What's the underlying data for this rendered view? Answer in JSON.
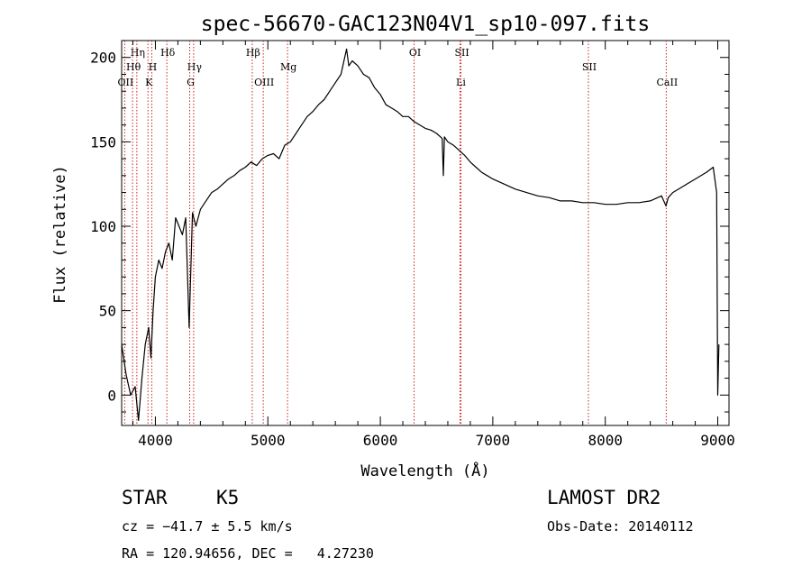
{
  "chart_data": {
    "type": "line",
    "title": "spec-56670-GAC123N04V1_sp10-097.fits",
    "xlabel": "Wavelength (Å)",
    "ylabel": "Flux (relative)",
    "xlim": [
      3700,
      9100
    ],
    "ylim": [
      -18,
      210
    ],
    "xticks": [
      4000,
      5000,
      6000,
      7000,
      8000,
      9000
    ],
    "yticks": [
      0,
      50,
      100,
      150,
      200
    ],
    "series": [
      {
        "name": "flux",
        "x": [
          3700,
          3740,
          3780,
          3820,
          3850,
          3880,
          3910,
          3940,
          3960,
          3980,
          4000,
          4030,
          4060,
          4090,
          4120,
          4150,
          4180,
          4210,
          4240,
          4270,
          4300,
          4330,
          4360,
          4400,
          4450,
          4500,
          4550,
          4600,
          4650,
          4700,
          4750,
          4800,
          4850,
          4900,
          4950,
          5000,
          5050,
          5100,
          5150,
          5200,
          5250,
          5300,
          5350,
          5400,
          5450,
          5500,
          5550,
          5600,
          5650,
          5700,
          5720,
          5750,
          5800,
          5850,
          5900,
          5950,
          6000,
          6050,
          6100,
          6150,
          6200,
          6250,
          6300,
          6350,
          6400,
          6450,
          6500,
          6550,
          6560,
          6570,
          6600,
          6650,
          6700,
          6750,
          6800,
          6850,
          6900,
          6950,
          7000,
          7100,
          7200,
          7300,
          7400,
          7500,
          7600,
          7700,
          7800,
          7900,
          8000,
          8100,
          8200,
          8300,
          8400,
          8500,
          8540,
          8560,
          8600,
          8700,
          8800,
          8900,
          8960,
          8990,
          9000,
          9010
        ],
        "y": [
          30,
          12,
          0,
          5,
          -15,
          10,
          30,
          40,
          22,
          50,
          70,
          80,
          75,
          85,
          90,
          80,
          105,
          100,
          95,
          105,
          40,
          108,
          100,
          110,
          115,
          120,
          122,
          125,
          128,
          130,
          133,
          135,
          138,
          136,
          140,
          142,
          143,
          140,
          148,
          150,
          155,
          160,
          165,
          168,
          172,
          175,
          180,
          185,
          190,
          205,
          195,
          198,
          195,
          190,
          188,
          182,
          178,
          172,
          170,
          168,
          165,
          165,
          162,
          160,
          158,
          157,
          155,
          152,
          130,
          153,
          150,
          148,
          145,
          142,
          138,
          135,
          132,
          130,
          128,
          125,
          122,
          120,
          118,
          117,
          115,
          115,
          114,
          114,
          113,
          113,
          114,
          114,
          115,
          118,
          112,
          117,
          120,
          124,
          128,
          132,
          135,
          120,
          0,
          30
        ]
      }
    ],
    "lines": [
      {
        "label": "Hη",
        "wavelength": 3835,
        "row": 0
      },
      {
        "label": "Hθ",
        "wavelength": 3797,
        "row": 1
      },
      {
        "label": "OII",
        "wavelength": 3727,
        "row": 2
      },
      {
        "label": "Hδ",
        "wavelength": 4102,
        "row": 0
      },
      {
        "label": "H",
        "wavelength": 3968,
        "row": 1
      },
      {
        "label": "K",
        "wavelength": 3934,
        "row": 2
      },
      {
        "label": "Hγ",
        "wavelength": 4340,
        "row": 1
      },
      {
        "label": "G",
        "wavelength": 4305,
        "row": 2
      },
      {
        "label": "Hβ",
        "wavelength": 4861,
        "row": 0
      },
      {
        "label": "OIII",
        "wavelength": 4959,
        "row": 2
      },
      {
        "label": "Mg",
        "wavelength": 5175,
        "row": 1
      },
      {
        "label": "OI",
        "wavelength": 6300,
        "row": 0
      },
      {
        "label": "SII",
        "wavelength": 6717,
        "row": 0
      },
      {
        "label": "Li",
        "wavelength": 6708,
        "row": 2
      },
      {
        "label": "SII",
        "wavelength": 7850,
        "row": 1
      },
      {
        "label": "CaII",
        "wavelength": 8542,
        "row": 2
      }
    ]
  },
  "info": {
    "object_class": "STAR",
    "subclass": "K5",
    "survey": "LAMOST DR2",
    "cz": "cz = −41.7 ± 5.5 km/s",
    "obs_date": "Obs-Date: 20140112",
    "coords": "RA = 120.94656, DEC =   4.27230"
  },
  "colors": {
    "line": "#000000",
    "marker": "#cc2222",
    "axes": "#000000",
    "background": "#ffffff"
  }
}
